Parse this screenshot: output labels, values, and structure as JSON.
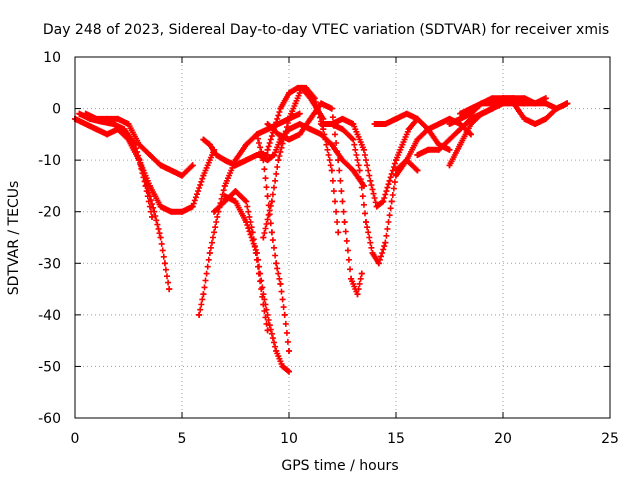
{
  "chart_data": {
    "type": "scatter",
    "title": "Day 248 of 2023, Sidereal Day-to-day VTEC variation (SDTVAR) for receiver xmis",
    "xlabel": "GPS time / hours",
    "ylabel": "SDTVAR / TECUs",
    "xlim": [
      0,
      25
    ],
    "ylim": [
      -60,
      10
    ],
    "xticks": [
      0,
      5,
      10,
      15,
      20,
      25
    ],
    "yticks": [
      -60,
      -50,
      -40,
      -30,
      -20,
      -10,
      0,
      10
    ],
    "grid": true,
    "marker": "+",
    "color": "#ff0000",
    "series": [
      {
        "name": "track-1",
        "x": [
          0.0,
          0.5,
          1.0,
          1.5,
          2.0,
          2.5,
          3.0,
          3.3,
          3.6
        ],
        "y": [
          -2,
          -3,
          -4,
          -5,
          -4,
          -6,
          -10,
          -15,
          -21
        ]
      },
      {
        "name": "track-2",
        "x": [
          0.2,
          0.7,
          1.2,
          1.8,
          2.3,
          2.8,
          3.3,
          3.7,
          4.0,
          4.2,
          4.4
        ],
        "y": [
          -1,
          -2,
          -2.5,
          -3,
          -4,
          -7,
          -14,
          -20,
          -25,
          -30,
          -35
        ]
      },
      {
        "name": "track-3",
        "x": [
          0.5,
          1.0,
          1.5,
          2.0,
          2.5,
          3.0,
          3.5,
          4.0,
          4.5,
          5.0,
          5.5
        ],
        "y": [
          -1,
          -2,
          -2,
          -2,
          -3,
          -7,
          -9,
          -11,
          -12,
          -13,
          -11
        ]
      },
      {
        "name": "track-4",
        "x": [
          2.5,
          3.0,
          3.5,
          4.0,
          4.5,
          5.0,
          5.5,
          6.0,
          6.5
        ],
        "y": [
          -6,
          -10,
          -15,
          -19,
          -20,
          -20,
          -19,
          -13,
          -8
        ]
      },
      {
        "name": "track-5",
        "x": [
          5.8,
          6.0,
          6.3,
          6.7,
          7.0,
          7.5,
          8.0,
          8.5,
          9.0,
          9.5,
          10.0,
          10.5
        ],
        "y": [
          -40,
          -36,
          -28,
          -20,
          -15,
          -10,
          -7,
          -5,
          -4,
          -3,
          -2,
          -1
        ]
      },
      {
        "name": "track-6",
        "x": [
          6.0,
          6.3,
          6.6,
          7.0,
          7.5,
          8.0,
          8.5,
          9.0
        ],
        "y": [
          -6,
          -7,
          -9,
          -10,
          -11,
          -10,
          -9,
          -9
        ]
      },
      {
        "name": "track-7",
        "x": [
          6.5,
          7.0,
          7.5,
          8.0,
          8.3,
          8.6,
          8.8,
          9.0
        ],
        "y": [
          -20,
          -18,
          -16,
          -18,
          -24,
          -32,
          -38,
          -43
        ]
      },
      {
        "name": "track-8",
        "x": [
          7.0,
          7.5,
          8.0,
          8.5,
          8.8,
          9.1,
          9.4,
          9.7,
          10.0
        ],
        "y": [
          -17,
          -18,
          -22,
          -28,
          -36,
          -42,
          -47,
          -50,
          -51
        ]
      },
      {
        "name": "track-9",
        "x": [
          8.5,
          8.8,
          9.0,
          9.2,
          9.4,
          9.6,
          9.8,
          10.0
        ],
        "y": [
          -5,
          -10,
          -17,
          -24,
          -30,
          -34,
          -40,
          -47
        ]
      },
      {
        "name": "track-10",
        "x": [
          8.8,
          9.2,
          9.5,
          10.0,
          10.3,
          10.6,
          11.0,
          11.3,
          11.6
        ],
        "y": [
          -25,
          -18,
          -10,
          -2,
          1,
          4,
          2,
          0,
          -2
        ]
      },
      {
        "name": "track-11",
        "x": [
          8.6,
          9.0,
          9.3,
          9.6,
          10.0,
          10.5,
          11.0,
          11.5,
          12.0,
          12.5,
          13.0,
          13.5
        ],
        "y": [
          -9,
          -10,
          -9,
          -6,
          -4,
          -3,
          -4,
          -5,
          -7,
          -10,
          -12,
          -15
        ]
      },
      {
        "name": "track-12",
        "x": [
          9.0,
          9.3,
          9.6,
          10.0,
          10.4,
          10.8,
          11.2,
          11.6,
          12.0,
          12.3
        ],
        "y": [
          -8,
          -4,
          0,
          3,
          4,
          4,
          2,
          -4,
          -12,
          -24
        ]
      },
      {
        "name": "track-13",
        "x": [
          9.0,
          9.5,
          10.0,
          10.5,
          11.0,
          11.5,
          12.0,
          12.3,
          12.6,
          12.9,
          13.2,
          13.4
        ],
        "y": [
          -3,
          -5,
          -6,
          -5,
          -2,
          1,
          0,
          -10,
          -22,
          -33,
          -36,
          -32
        ]
      },
      {
        "name": "track-14",
        "x": [
          11.5,
          12.0,
          12.5,
          13.0,
          13.5,
          13.8,
          14.1,
          14.4,
          14.7,
          15.0,
          15.3,
          15.6,
          16.0
        ],
        "y": [
          -3,
          -3,
          -2,
          -3,
          -8,
          -14,
          -19,
          -18,
          -14,
          -10,
          -7,
          -4,
          -2
        ]
      },
      {
        "name": "track-15",
        "x": [
          12.0,
          12.5,
          13.0,
          13.3,
          13.6,
          13.9,
          14.2,
          14.5,
          14.8,
          15.0,
          15.5,
          16.0
        ],
        "y": [
          -3,
          -4,
          -6,
          -12,
          -22,
          -28,
          -30,
          -26,
          -18,
          -13,
          -10,
          -12
        ]
      },
      {
        "name": "track-16",
        "x": [
          14.0,
          14.5,
          15.0,
          15.5,
          16.0,
          16.5,
          17.0,
          17.5
        ],
        "y": [
          -3,
          -3,
          -2,
          -1,
          -2,
          -4,
          -7,
          -8
        ]
      },
      {
        "name": "track-17",
        "x": [
          15.0,
          15.5,
          16.0,
          16.5,
          17.0,
          17.5,
          18.0,
          18.5
        ],
        "y": [
          -12,
          -10,
          -6,
          -4,
          -3,
          -2,
          -3,
          -5
        ]
      },
      {
        "name": "track-18",
        "x": [
          16.0,
          16.5,
          17.0,
          17.5,
          18.0,
          18.5,
          19.0,
          19.5,
          20.0,
          20.5,
          21.0
        ],
        "y": [
          -9,
          -8,
          -8,
          -6,
          -4,
          -2,
          -1,
          0,
          1,
          1,
          1
        ]
      },
      {
        "name": "track-19",
        "x": [
          17.5,
          18.0,
          18.5,
          19.0,
          19.5,
          20.0,
          20.5,
          21.0,
          21.5,
          22.0,
          22.5,
          23.0
        ],
        "y": [
          -11,
          -7,
          -3,
          -1,
          0,
          2,
          2,
          1,
          1,
          1,
          0,
          1
        ]
      },
      {
        "name": "track-20",
        "x": [
          18.0,
          18.5,
          19.0,
          19.5,
          20.0,
          20.5,
          21.0,
          21.5,
          22.0,
          22.5,
          23.0
        ],
        "y": [
          -1,
          0,
          1,
          2,
          2,
          1,
          -2,
          -3,
          -2,
          0,
          1
        ]
      },
      {
        "name": "track-21",
        "x": [
          17.5,
          18.0,
          18.5,
          19.0,
          19.5,
          20.0,
          20.5,
          21.0,
          21.5,
          22.0
        ],
        "y": [
          -3,
          -2,
          -1,
          1,
          1,
          2,
          2,
          2,
          1,
          2
        ]
      }
    ]
  }
}
